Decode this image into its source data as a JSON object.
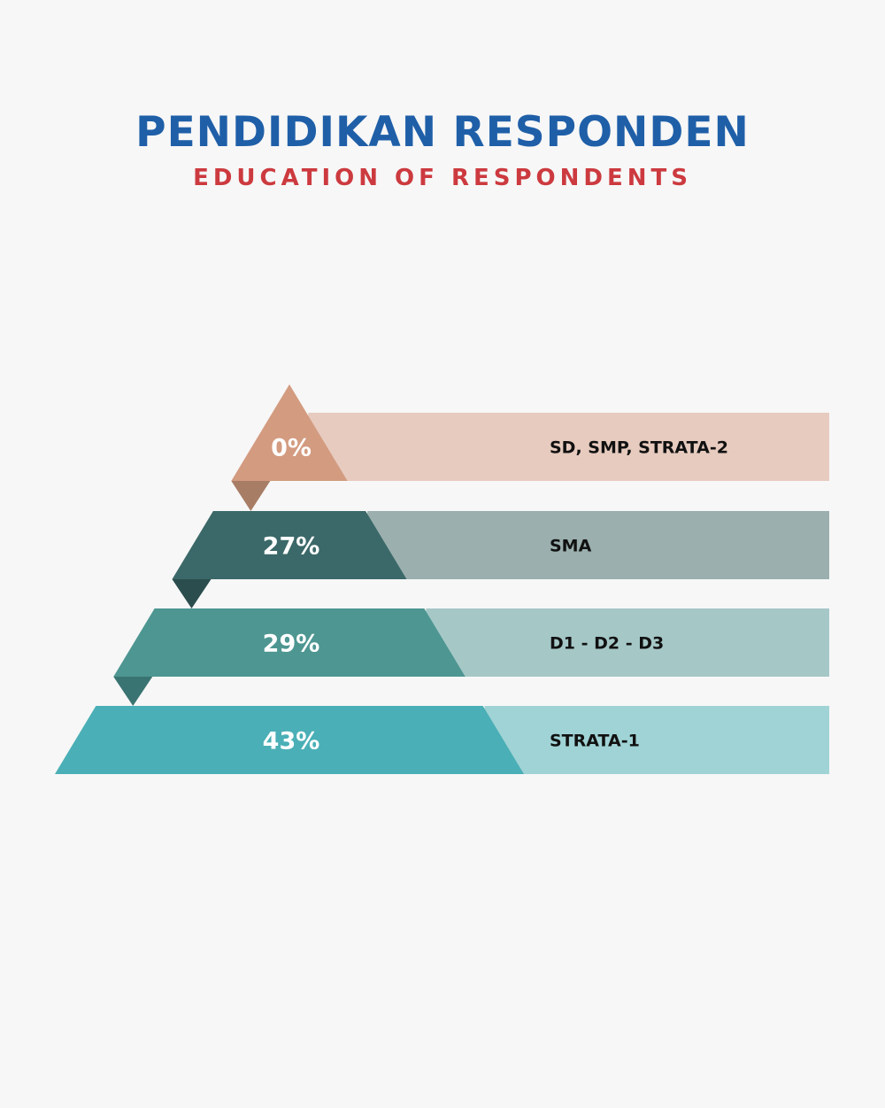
{
  "header": {
    "title": "PENDIDIKAN RESPONDEN",
    "subtitle": "EDUCATION OF RESPONDENTS"
  },
  "chart_data": {
    "type": "bar",
    "title": "PENDIDIKAN RESPONDEN",
    "subtitle": "EDUCATION OF RESPONDENTS",
    "categories": [
      "SD, SMP, STRATA-2",
      "SMA",
      "D1 - D2 - D3",
      "STRATA-1"
    ],
    "values": [
      0,
      27,
      29,
      43
    ],
    "value_labels": [
      "0%",
      "27%",
      "29%",
      "43%"
    ],
    "unit": "%",
    "colors": {
      "dark": [
        "#d39b80",
        "#3b6868",
        "#4e9692",
        "#4aafb6"
      ],
      "light": [
        "#e7cbbf",
        "#9aafae",
        "#a5c8c7",
        "#a0d3d6"
      ],
      "fold": [
        "#a87d66",
        "#2b4d4d",
        "#3a7472",
        "#3b8d93"
      ]
    }
  }
}
